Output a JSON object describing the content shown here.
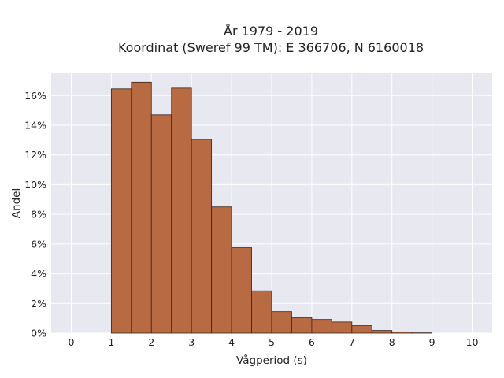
{
  "chart_data": {
    "type": "bar",
    "title": "År 1979 - 2019",
    "subtitle": "Koordinat (Sweref 99 TM): E 366706, N 6160018",
    "xlabel": "Vågperiod (s)",
    "ylabel": "Andel",
    "xlim": [
      -0.5,
      10.5
    ],
    "ylim": [
      0,
      0.175
    ],
    "x_ticks": [
      0,
      1,
      2,
      3,
      4,
      5,
      6,
      7,
      8,
      9,
      10
    ],
    "y_ticks": [
      0,
      0.02,
      0.04,
      0.06,
      0.08,
      0.1,
      0.12,
      0.14,
      0.16
    ],
    "y_tick_labels": [
      "0%",
      "2%",
      "4%",
      "6%",
      "8%",
      "10%",
      "12%",
      "14%",
      "16%"
    ],
    "x_tick_labels": [
      "0",
      "1",
      "2",
      "3",
      "4",
      "5",
      "6",
      "7",
      "8",
      "9",
      "10"
    ],
    "bin_width": 0.5,
    "bins": [
      {
        "start": 1.0,
        "value": 0.1645
      },
      {
        "start": 1.5,
        "value": 0.169
      },
      {
        "start": 2.0,
        "value": 0.147
      },
      {
        "start": 2.5,
        "value": 0.165
      },
      {
        "start": 3.0,
        "value": 0.1305
      },
      {
        "start": 3.5,
        "value": 0.085
      },
      {
        "start": 4.0,
        "value": 0.0575
      },
      {
        "start": 4.5,
        "value": 0.0285
      },
      {
        "start": 5.0,
        "value": 0.0145
      },
      {
        "start": 5.5,
        "value": 0.0105
      },
      {
        "start": 6.0,
        "value": 0.0092
      },
      {
        "start": 6.5,
        "value": 0.0075
      },
      {
        "start": 7.0,
        "value": 0.005
      },
      {
        "start": 7.5,
        "value": 0.0018
      },
      {
        "start": 8.0,
        "value": 0.0007
      },
      {
        "start": 8.5,
        "value": 0.0002
      }
    ],
    "grid": true,
    "colors": {
      "bar_fill": "#B86B43",
      "bar_edge": "#3a2515",
      "plot_background": "#E8E8F0",
      "grid": "#ffffff"
    }
  }
}
